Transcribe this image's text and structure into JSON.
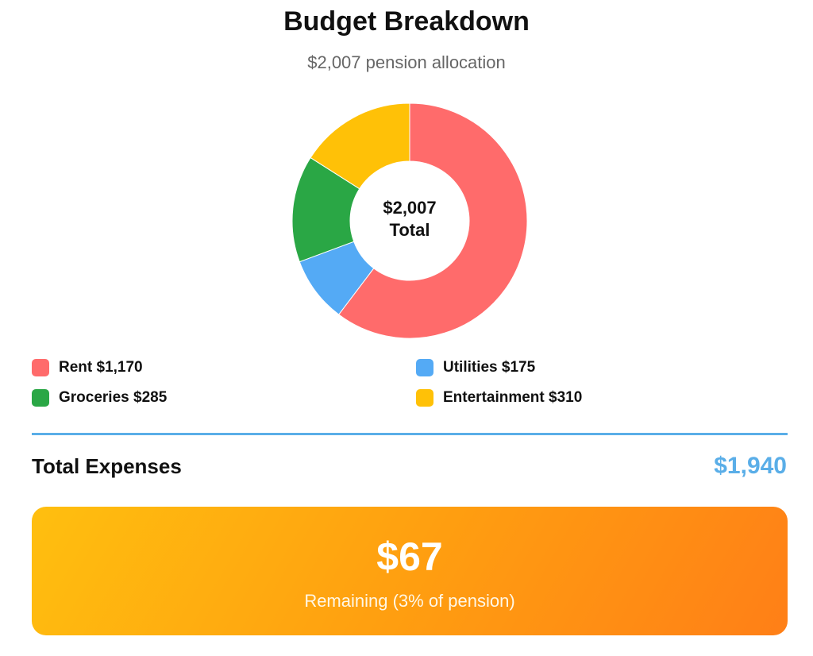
{
  "header": {
    "title": "Budget Breakdown",
    "subtitle": "$2,007 pension allocation"
  },
  "chart_data": {
    "type": "pie",
    "donut": true,
    "title": "Budget Breakdown",
    "subtitle": "$2,007 pension allocation",
    "center_label": {
      "amount": "$2,007",
      "caption": "Total"
    },
    "slices": [
      {
        "name": "Rent",
        "value": 1170,
        "color": "#ff6b6b",
        "label": "Rent $1,170"
      },
      {
        "name": "Utilities",
        "value": 175,
        "color": "#54aaf5",
        "label": "Utilities $175"
      },
      {
        "name": "Groceries",
        "value": 285,
        "color": "#2aa745",
        "label": "Groceries $285"
      },
      {
        "name": "Entertainment",
        "value": 310,
        "color": "#ffc107",
        "label": "Entertainment $310"
      }
    ],
    "legend_position": "bottom"
  },
  "summary": {
    "total_label": "Total Expenses",
    "total_value": "$1,940",
    "remaining_amount": "$67",
    "remaining_caption": "Remaining (3% of pension)"
  },
  "colors": {
    "accent": "#5aaee8",
    "remaining_start": "#ffbf0f",
    "remaining_end": "#ff7f17"
  }
}
